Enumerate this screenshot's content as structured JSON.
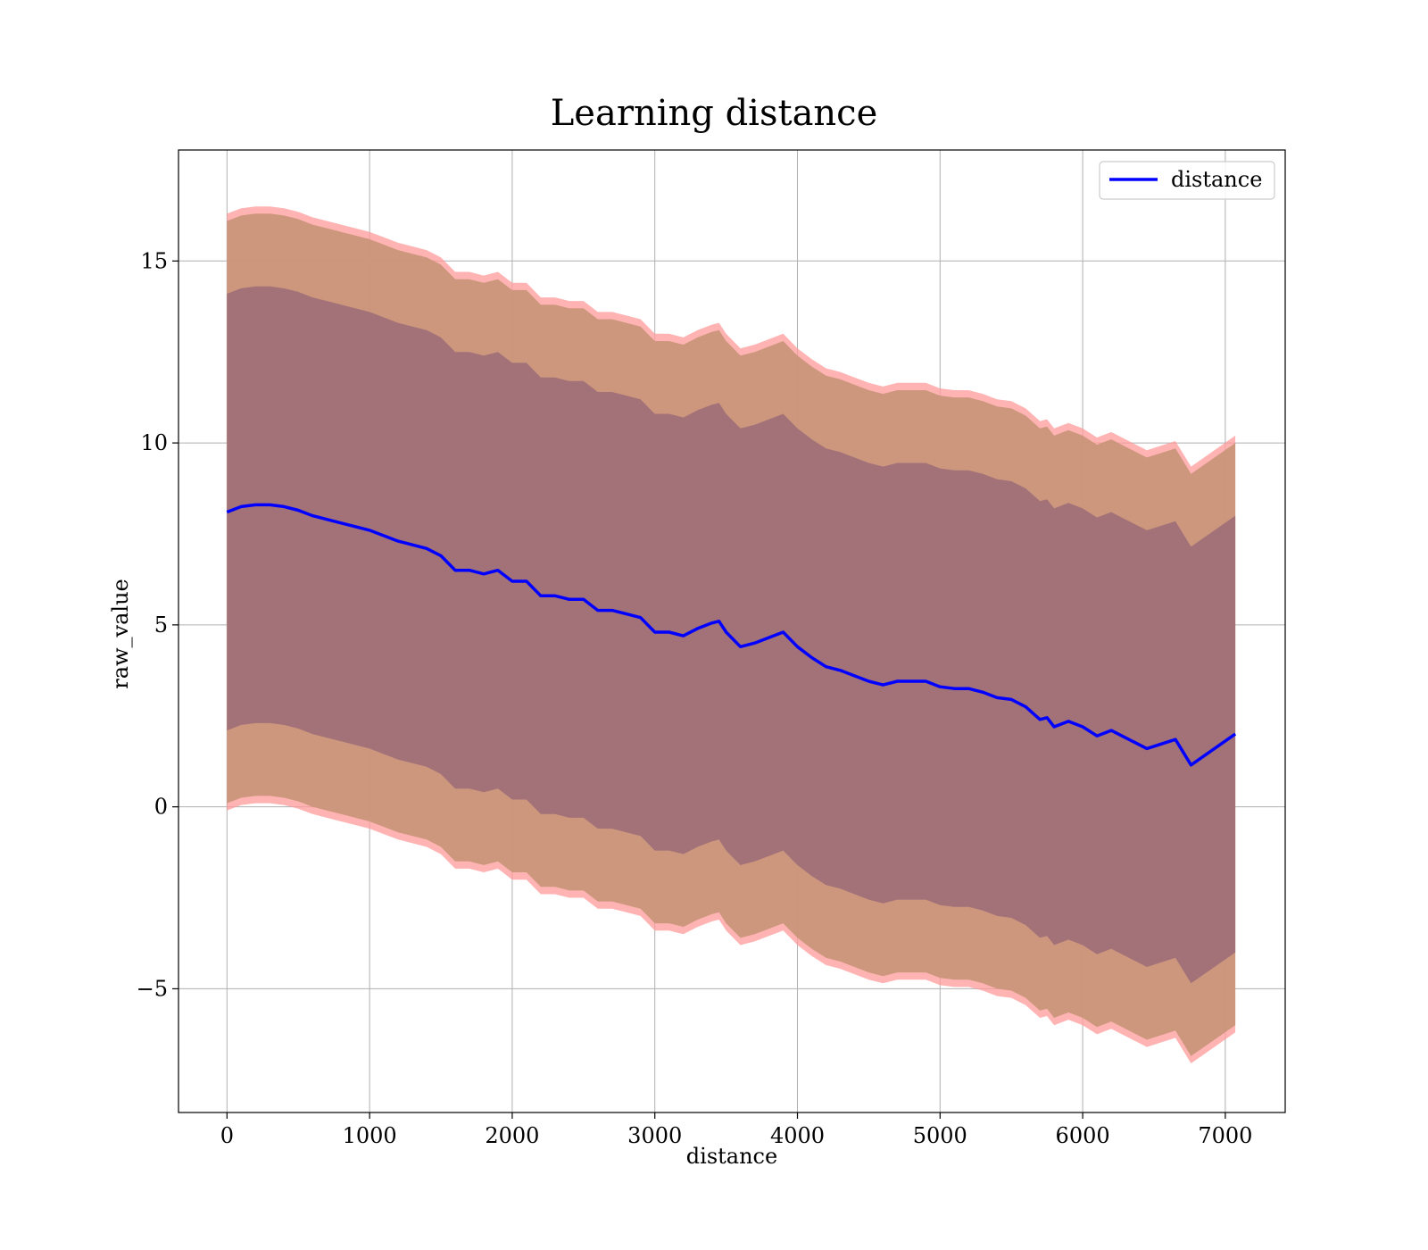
{
  "chart_data": {
    "type": "line",
    "title": "Learning distance",
    "xlabel": "distance",
    "ylabel": "raw_value",
    "xlim": [
      -340,
      7420
    ],
    "ylim": [
      -8.4,
      18.05
    ],
    "xticks": [
      0,
      1000,
      2000,
      3000,
      4000,
      5000,
      6000,
      7000
    ],
    "xtick_labels": [
      "0",
      "1000",
      "2000",
      "3000",
      "4000",
      "5000",
      "6000",
      "7000"
    ],
    "yticks": [
      -5,
      0,
      5,
      10,
      15
    ],
    "ytick_labels": [
      "−5",
      "0",
      "5",
      "10",
      "15"
    ],
    "grid": true,
    "legend": {
      "position": "top-right",
      "entries": [
        "distance"
      ]
    },
    "colors": {
      "line": "#0000ff",
      "band_outer": "#ff9999",
      "band_middle": "#c89478",
      "band_inner": "#a07078",
      "grid": "#b0b0b0"
    },
    "x": [
      0,
      100,
      200,
      300,
      400,
      500,
      600,
      700,
      800,
      900,
      1000,
      1100,
      1200,
      1300,
      1400,
      1500,
      1600,
      1700,
      1800,
      1900,
      2000,
      2100,
      2200,
      2300,
      2400,
      2500,
      2600,
      2700,
      2800,
      2900,
      3000,
      3100,
      3200,
      3300,
      3400,
      3450,
      3500,
      3600,
      3700,
      3800,
      3900,
      4000,
      4100,
      4200,
      4300,
      4400,
      4500,
      4600,
      4700,
      4800,
      4900,
      5000,
      5100,
      5200,
      5300,
      5400,
      5500,
      5600,
      5700,
      5750,
      5800,
      5900,
      6000,
      6100,
      6200,
      6300,
      6450,
      6650,
      6760,
      7070
    ],
    "series": [
      {
        "name": "distance",
        "values": [
          8.1,
          8.25,
          8.3,
          8.3,
          8.25,
          8.15,
          8.0,
          7.9,
          7.8,
          7.7,
          7.6,
          7.45,
          7.3,
          7.2,
          7.1,
          6.9,
          6.5,
          6.5,
          6.4,
          6.5,
          6.2,
          6.2,
          5.8,
          5.8,
          5.7,
          5.7,
          5.4,
          5.4,
          5.3,
          5.2,
          4.8,
          4.8,
          4.7,
          4.9,
          5.05,
          5.1,
          4.8,
          4.4,
          4.5,
          4.65,
          4.8,
          4.4,
          4.1,
          3.85,
          3.75,
          3.6,
          3.45,
          3.35,
          3.45,
          3.45,
          3.45,
          3.3,
          3.25,
          3.25,
          3.15,
          3.0,
          2.95,
          2.75,
          2.4,
          2.45,
          2.2,
          2.35,
          2.2,
          1.95,
          2.1,
          1.9,
          1.6,
          1.85,
          1.15,
          2.0
        ]
      }
    ],
    "bands": [
      {
        "name": "outer",
        "offset_upper": 8.2,
        "offset_lower": 8.2
      },
      {
        "name": "middle",
        "offset_upper": 8.0,
        "offset_lower": 8.0
      },
      {
        "name": "inner",
        "offset_upper": 6.0,
        "offset_lower": 6.0
      }
    ]
  }
}
